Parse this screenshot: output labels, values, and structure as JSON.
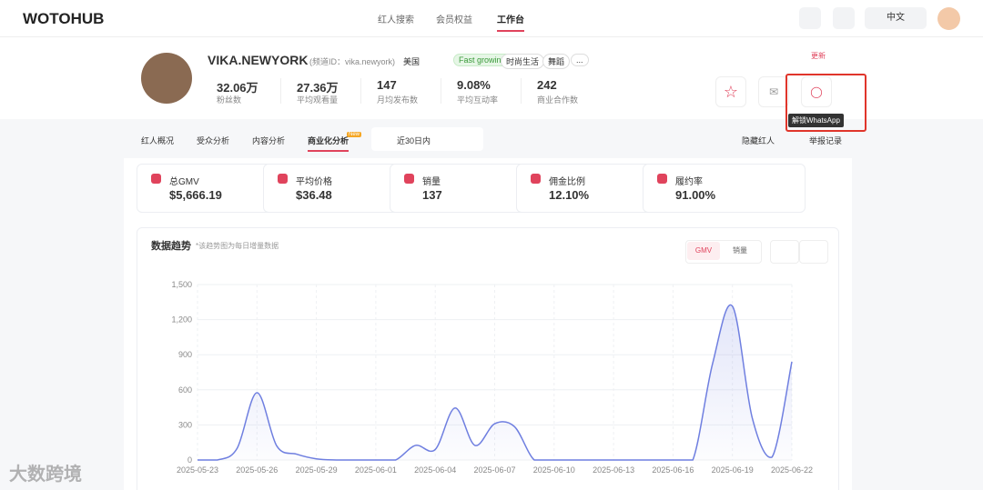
{
  "header": {
    "logo": "WOTOHUB",
    "nav": [
      "红人搜索",
      "会员权益",
      "工作台"
    ],
    "language": "中文"
  },
  "profile": {
    "name": "VIKA.NEWYORK",
    "channel_id": "(频道ID：vika.newyork)",
    "country": "美国",
    "tags": [
      "Fast growing",
      "时尚生活",
      "舞蹈",
      "..."
    ],
    "update": "更新",
    "stats": [
      {
        "value": "32.06万",
        "label": "粉丝数"
      },
      {
        "value": "27.36万",
        "label": "平均观看量"
      },
      {
        "value": "147",
        "label": "月均发布数"
      },
      {
        "value": "9.08%",
        "label": "平均互动率"
      },
      {
        "value": "242",
        "label": "商业合作数"
      }
    ],
    "tooltip": "解锁WhatsApp"
  },
  "tabs": {
    "items": [
      "红人概况",
      "受众分析",
      "内容分析",
      "商业化分析"
    ],
    "badge": "New",
    "date_range": "近30日内",
    "actions": [
      "隐藏红人",
      "举报记录"
    ]
  },
  "metrics": [
    {
      "label": "总GMV",
      "value": "$5,666.19"
    },
    {
      "label": "平均价格",
      "value": "$36.48"
    },
    {
      "label": "销量",
      "value": "137"
    },
    {
      "label": "佣金比例",
      "value": "12.10%"
    },
    {
      "label": "履约率",
      "value": "91.00%"
    }
  ],
  "chart_data": {
    "type": "area",
    "title": "数据趋势",
    "subtitle": "*该趋势图为每日增量数据",
    "toggles": [
      "GMV",
      "销量"
    ],
    "color": "#6f7fe0",
    "grid": true,
    "categories": [
      "2025-05-23",
      null,
      null,
      "2025-05-26",
      null,
      null,
      "2025-05-29",
      null,
      null,
      "2025-06-01",
      null,
      null,
      "2025-06-04",
      null,
      null,
      "2025-06-07",
      null,
      null,
      "2025-06-10",
      null,
      null,
      "2025-06-13",
      null,
      null,
      "2025-06-16",
      null,
      null,
      "2025-06-19",
      null,
      null,
      "2025-06-22"
    ],
    "values": [
      0,
      0,
      100,
      575,
      120,
      50,
      10,
      0,
      0,
      0,
      0,
      125,
      90,
      445,
      125,
      310,
      285,
      0,
      0,
      0,
      0,
      0,
      0,
      0,
      0,
      0,
      825,
      1315,
      360,
      25,
      840
    ],
    "ylim": [
      0,
      1500
    ],
    "yticks": [
      0,
      300,
      600,
      900,
      {
        "value": 1200,
        "label": "1,200"
      },
      {
        "value": 1500,
        "label": "1,500"
      }
    ]
  },
  "watermark": "大数跨境"
}
